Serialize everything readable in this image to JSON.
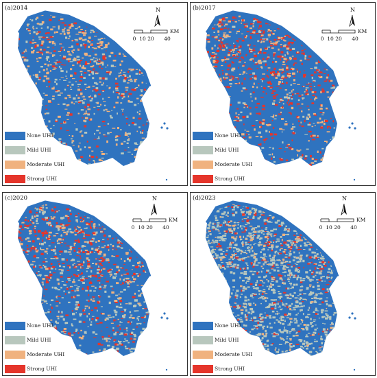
{
  "panels": [
    {
      "id": "p2014",
      "title": "(a)2014",
      "year": "2014"
    },
    {
      "id": "p2017",
      "title": "(b)2017",
      "year": "2017"
    },
    {
      "id": "p2020",
      "title": "(c)2020",
      "year": "2020"
    },
    {
      "id": "p2023",
      "title": "(d)2023",
      "year": "2023"
    }
  ],
  "legend": [
    {
      "label": "None UHI",
      "color": "#2f73bf"
    },
    {
      "label": "Mild UHI",
      "color": "#b8c7bd"
    },
    {
      "label": "Moderate UHI",
      "color": "#f0b27f"
    },
    {
      "label": "Strong UHI",
      "color": "#e5352b"
    }
  ],
  "scale": {
    "ticks": [
      "0",
      "10",
      "20",
      "40"
    ],
    "unit": "KM"
  },
  "north_label": "N"
}
